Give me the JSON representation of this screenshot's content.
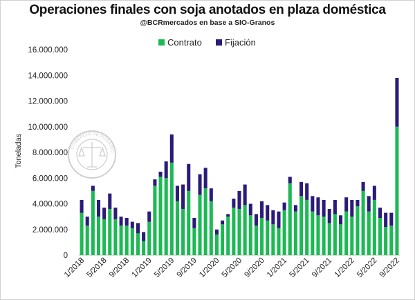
{
  "header": {
    "title": "Operaciones finales con soja anotados en plaza doméstica",
    "subtitle": "@BCRmercados en base a SIO-Granos"
  },
  "colors": {
    "contrato": "#1db954",
    "fijacion": "#2a1b7a",
    "axis": "#bfbfbf",
    "grid": "#e6e6e6"
  },
  "chart_data": {
    "type": "bar",
    "stacked": true,
    "ylabel": "Toneladas",
    "ylim": [
      0,
      16000000
    ],
    "yticks": [
      0,
      2000000,
      4000000,
      6000000,
      8000000,
      10000000,
      12000000,
      14000000,
      16000000
    ],
    "ytick_labels": [
      "0",
      "2.000.000",
      "4.000.000",
      "6.000.000",
      "8.000.000",
      "10.000.000",
      "12.000.000",
      "14.000.000",
      "16.000.000"
    ],
    "legend_position": "top-center",
    "grid": false,
    "categories": [
      "1/2018",
      "2/2018",
      "3/2018",
      "4/2018",
      "5/2018",
      "6/2018",
      "7/2018",
      "8/2018",
      "9/2018",
      "10/2018",
      "11/2018",
      "12/2018",
      "1/2019",
      "2/2019",
      "3/2019",
      "4/2019",
      "5/2019",
      "6/2019",
      "7/2019",
      "8/2019",
      "9/2019",
      "10/2019",
      "11/2019",
      "12/2019",
      "1/2020",
      "2/2020",
      "3/2020",
      "4/2020",
      "5/2020",
      "6/2020",
      "7/2020",
      "8/2020",
      "9/2020",
      "10/2020",
      "11/2020",
      "12/2020",
      "1/2021",
      "2/2021",
      "3/2021",
      "4/2021",
      "5/2021",
      "6/2021",
      "7/2021",
      "8/2021",
      "9/2021",
      "10/2021",
      "11/2021",
      "12/2021",
      "1/2022",
      "2/2022",
      "3/2022",
      "4/2022",
      "5/2022",
      "6/2022",
      "7/2022",
      "8/2022",
      "9/2022"
    ],
    "x_tick_labels": [
      "1/2018",
      "5/2018",
      "9/2018",
      "1/2019",
      "5/2019",
      "9/2019",
      "1/2020",
      "5/2020",
      "9/2020",
      "1/2021",
      "5/2021",
      "9/2021",
      "1/2022",
      "5/2022",
      "9/2022"
    ],
    "x_tick_every": 4,
    "series": [
      {
        "name": "Contrato",
        "values": [
          3300000,
          2300000,
          5000000,
          3000000,
          2800000,
          3600000,
          2800000,
          2300000,
          2300000,
          2100000,
          1700000,
          1100000,
          2600000,
          5400000,
          6100000,
          6000000,
          7200000,
          4200000,
          3600000,
          5000000,
          2100000,
          4700000,
          5200000,
          4200000,
          1600000,
          2400000,
          3000000,
          3700000,
          3600000,
          3900000,
          3100000,
          2300000,
          2900000,
          2700000,
          2400000,
          2100000,
          3500000,
          5600000,
          3400000,
          4600000,
          4300000,
          3400000,
          3100000,
          3000000,
          2500000,
          3200000,
          2400000,
          3400000,
          3000000,
          3800000,
          5000000,
          3400000,
          4300000,
          2900000,
          2200000,
          2300000,
          10000000
        ]
      },
      {
        "name": "Fijación",
        "values": [
          1000000,
          700000,
          400000,
          1300000,
          900000,
          1200000,
          900000,
          700000,
          600000,
          500000,
          800000,
          700000,
          800000,
          500000,
          400000,
          1300000,
          2200000,
          1200000,
          1900000,
          2100000,
          800000,
          1600000,
          1600000,
          1000000,
          400000,
          300000,
          200000,
          700000,
          1400000,
          1600000,
          900000,
          900000,
          1300000,
          1200000,
          1100000,
          1300000,
          600000,
          500000,
          500000,
          1100000,
          1300000,
          1200000,
          1400000,
          1300000,
          1100000,
          1100000,
          700000,
          1100000,
          1300000,
          500000,
          700000,
          1200000,
          1100000,
          800000,
          1100000,
          1000000,
          3800000
        ]
      }
    ]
  }
}
